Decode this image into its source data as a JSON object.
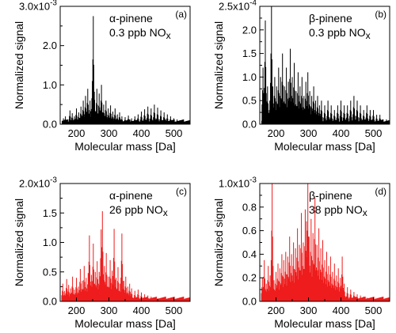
{
  "chart_data": [
    {
      "type": "line",
      "panel_letter": "(a)",
      "annotation": [
        "α-pinene",
        "0.3 ppb NO",
        "x"
      ],
      "xlabel": "Molecular mass [Da]",
      "ylabel": "Normalized signal",
      "xlim": [
        150,
        550
      ],
      "ylim": [
        0,
        0.003
      ],
      "x_ticks": [
        200,
        300,
        400,
        500
      ],
      "y_ticks": [
        0,
        0.001,
        0.002,
        0.003
      ],
      "y_tick_labels": [
        "0.0",
        "1.0",
        "2.0",
        "3.0"
      ],
      "y_exponent_label": [
        "x10",
        "-3"
      ],
      "color": "#000000",
      "series": [
        {
          "x": [
            160,
            166,
            173,
            180,
            187,
            194,
            200,
            207,
            214,
            221,
            228,
            235,
            242,
            249,
            252,
            256,
            263,
            270,
            277,
            284,
            291,
            298,
            305,
            312,
            319,
            326,
            333,
            340,
            350,
            360,
            370,
            380,
            390,
            400,
            410,
            420,
            430,
            440,
            450,
            460,
            470,
            480,
            490,
            500,
            510,
            520,
            530,
            540
          ],
          "y": [
            0.00015,
            0.0002,
            0.00012,
            0.00035,
            0.00028,
            0.0002,
            0.0004,
            0.0003,
            0.00045,
            0.0006,
            0.00072,
            0.0009,
            0.0006,
            0.0011,
            0.00275,
            0.00062,
            0.0009,
            0.00078,
            0.001,
            0.0005,
            0.0006,
            0.0004,
            0.00048,
            0.00032,
            0.0004,
            0.00025,
            0.0003,
            0.0002,
            0.00018,
            0.00022,
            0.00015,
            0.0002,
            0.00025,
            0.00032,
            0.00038,
            0.00045,
            0.0004,
            0.0005,
            0.00042,
            0.00035,
            0.0003,
            0.00025,
            0.0002,
            0.00015,
            0.00012,
            0.0001,
            8e-05,
            5e-05
          ]
        }
      ]
    },
    {
      "type": "line",
      "panel_letter": "(b)",
      "annotation": [
        "β-pinene",
        "0.3 ppb NO",
        "x"
      ],
      "xlabel": "Molecular mass [Da]",
      "ylabel": "Normalized signal",
      "xlim": [
        150,
        550
      ],
      "ylim": [
        0,
        0.00025
      ],
      "x_ticks": [
        200,
        300,
        400,
        500
      ],
      "y_ticks": [
        0,
        5e-05,
        0.0001,
        0.00015,
        0.0002,
        0.00025
      ],
      "y_tick_labels": [
        "0.0",
        "0.5",
        "1.0",
        "1.5",
        "2.0",
        "2.5"
      ],
      "y_exponent_label": [
        "x10",
        "-4"
      ],
      "color": "#000000",
      "series": [
        {
          "x": [
            160,
            167,
            174,
            181,
            186,
            190,
            196,
            202,
            208,
            214,
            220,
            226,
            232,
            238,
            244,
            250,
            256,
            262,
            268,
            274,
            280,
            286,
            292,
            298,
            304,
            310,
            316,
            322,
            328,
            334,
            340,
            350,
            360,
            370,
            380,
            390,
            400,
            410,
            420,
            430,
            440,
            450,
            460,
            470,
            480,
            490,
            500,
            510,
            520,
            530,
            540
          ],
          "y": [
            0.00012,
            0.00022,
            8e-05,
            5e-05,
            0.00025,
            8e-05,
            0.0001,
            8e-05,
            0.00012,
            0.0001,
            0.00015,
            8e-05,
            0.00012,
            9e-05,
            0.00016,
            0.0001,
            0.00013,
            7e-05,
            0.00011,
            8e-05,
            0.0001,
            6e-05,
            9e-05,
            0.00011,
            7e-05,
            6e-05,
            8e-05,
            5e-05,
            6e-05,
            4e-05,
            5e-05,
            4e-05,
            5e-05,
            4e-05,
            3e-05,
            4e-05,
            5e-05,
            4e-05,
            4e-05,
            5e-05,
            6e-05,
            5e-05,
            4e-05,
            3e-05,
            4e-05,
            3e-05,
            3e-05,
            2e-05,
            2e-05,
            1e-05,
            1e-05
          ]
        }
      ]
    },
    {
      "type": "line",
      "panel_letter": "(c)",
      "annotation": [
        "α-pinene",
        "26 ppb NO",
        "x"
      ],
      "xlabel": "Molecular mass [Da]",
      "ylabel": "Normalized signal",
      "xlim": [
        150,
        550
      ],
      "ylim": [
        0,
        0.002
      ],
      "x_ticks": [
        200,
        300,
        400,
        500
      ],
      "y_ticks": [
        0,
        0.0005,
        0.001,
        0.0015,
        0.002
      ],
      "y_tick_labels": [
        "0.0",
        "0.5",
        "1.0",
        "1.5",
        "2.0"
      ],
      "y_exponent_label": [
        "x10",
        "-3"
      ],
      "color": "#ee1c1c",
      "series": [
        {
          "x": [
            158,
            164,
            170,
            176,
            182,
            188,
            194,
            200,
            206,
            212,
            218,
            224,
            230,
            236,
            240,
            246,
            252,
            258,
            264,
            270,
            276,
            280,
            286,
            292,
            298,
            304,
            310,
            316,
            322,
            328,
            334,
            340,
            346,
            352,
            358,
            364,
            370,
            380,
            390,
            400,
            410,
            420,
            430,
            440,
            450,
            460,
            470,
            480,
            490,
            500,
            510,
            520,
            530,
            540
          ],
          "y": [
            0.0003,
            0.00018,
            0.00038,
            0.00028,
            0.00022,
            0.00042,
            0.0002,
            0.0004,
            0.00025,
            0.00055,
            0.00035,
            0.0006,
            0.0004,
            0.00048,
            0.00112,
            0.00045,
            0.00098,
            0.0005,
            0.00068,
            0.0005,
            0.00122,
            0.00153,
            0.0006,
            0.00082,
            0.00042,
            0.0007,
            0.00052,
            0.00123,
            0.0004,
            0.00058,
            0.0003,
            0.00115,
            0.00035,
            0.00042,
            0.00025,
            0.0003,
            0.00022,
            0.00018,
            0.0002,
            0.00015,
            0.00012,
            0.0001,
            8e-05,
            7e-05,
            5e-05,
            4e-05,
            4e-05,
            3e-05,
            2e-05,
            2e-05,
            1e-05,
            1e-05,
            1e-05,
            1e-05
          ]
        }
      ]
    },
    {
      "type": "line",
      "panel_letter": "(d)",
      "annotation": [
        "β-pinene",
        "38 ppb NO",
        "x"
      ],
      "xlabel": "Molecular mass [Da]",
      "ylabel": "Normalized signal",
      "xlim": [
        150,
        550
      ],
      "ylim": [
        0,
        0.001
      ],
      "x_ticks": [
        200,
        300,
        400,
        500
      ],
      "y_ticks": [
        0,
        0.0002,
        0.0004,
        0.0006,
        0.0008,
        0.001
      ],
      "y_tick_labels": [
        "0.0",
        "0.2",
        "0.4",
        "0.6",
        "0.8",
        "1.0"
      ],
      "y_exponent_label": [
        "x10",
        "-3"
      ],
      "color": "#ee1c1c",
      "series": [
        {
          "x": [
            158,
            164,
            170,
            176,
            182,
            188,
            194,
            200,
            206,
            212,
            218,
            224,
            230,
            236,
            242,
            248,
            254,
            260,
            266,
            272,
            278,
            284,
            290,
            294,
            298,
            302,
            308,
            314,
            320,
            326,
            332,
            338,
            344,
            350,
            356,
            362,
            368,
            374,
            380,
            386,
            392,
            398,
            404,
            410,
            420,
            430,
            440,
            450,
            460,
            470,
            480,
            490,
            500,
            510,
            520,
            530,
            540
          ],
          "y": [
            0.0002,
            0.00035,
            0.00015,
            0.0003,
            0.00022,
            0.001,
            0.00018,
            0.00025,
            0.00032,
            0.00028,
            0.0004,
            0.00035,
            0.00042,
            0.00038,
            0.00055,
            0.0004,
            0.0005,
            0.00045,
            0.00062,
            0.00048,
            0.00075,
            0.0005,
            0.00078,
            0.00068,
            0.001,
            0.00055,
            0.0007,
            0.00058,
            0.00088,
            0.00048,
            0.00062,
            0.00045,
            0.00052,
            0.00035,
            0.00042,
            0.0003,
            0.00038,
            0.00025,
            0.00032,
            0.00022,
            0.00028,
            0.0002,
            0.00038,
            0.00015,
            0.00012,
            0.0001,
            8e-05,
            6e-05,
            5e-05,
            4e-05,
            3e-05,
            3e-05,
            2e-05,
            2e-05,
            1e-05,
            1e-05,
            1e-05
          ]
        }
      ]
    }
  ]
}
